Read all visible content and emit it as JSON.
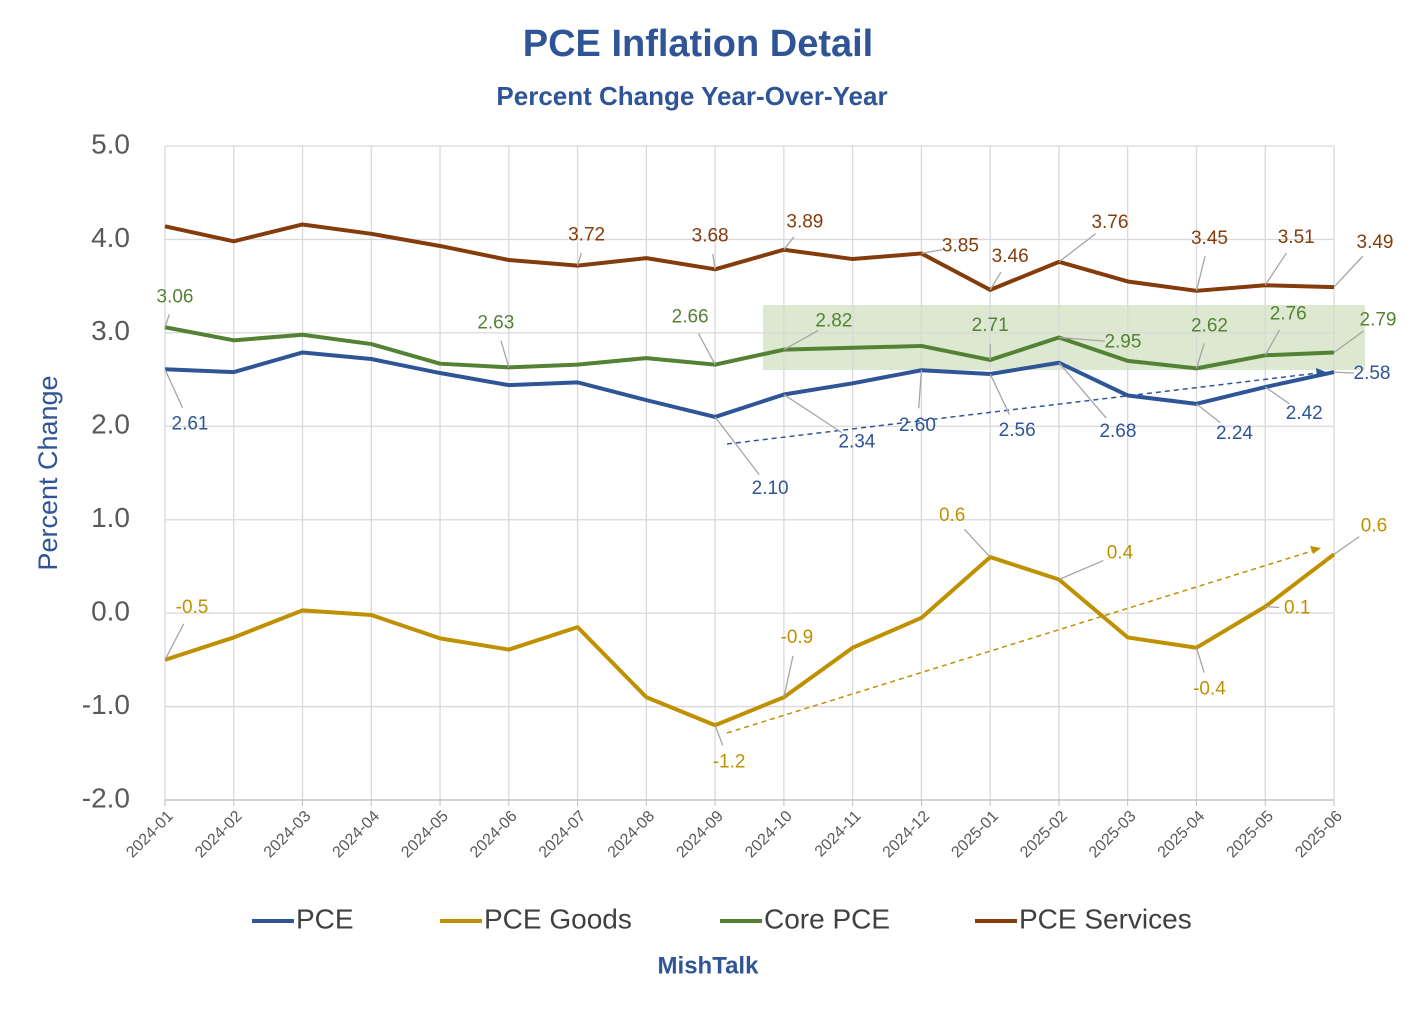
{
  "chart_data": {
    "type": "line",
    "title": "PCE Inflation Detail",
    "subtitle": "Percent Change Year-Over-Year",
    "y_label": "Percent Change",
    "footer": "MishTalk",
    "grid": true,
    "legend": "bottom",
    "categories": [
      "2024-01",
      "2024-02",
      "2024-03",
      "2024-04",
      "2024-05",
      "2024-06",
      "2024-07",
      "2024-08",
      "2024-09",
      "2024-10",
      "2024-11",
      "2024-12",
      "2025-01",
      "2025-02",
      "2025-03",
      "2025-04",
      "2025-05",
      "2025-06"
    ],
    "ylim": [
      -2,
      5
    ],
    "yticks": [
      {
        "value": -2,
        "label": "-2.0"
      },
      {
        "value": -1,
        "label": "-1.0"
      },
      {
        "value": 0,
        "label": "0.0"
      },
      {
        "value": 1,
        "label": "1.0"
      },
      {
        "value": 2,
        "label": "2.0"
      },
      {
        "value": 3,
        "label": "3.0"
      },
      {
        "value": 4,
        "label": "4.0"
      },
      {
        "value": 5,
        "label": "5.0"
      }
    ],
    "series": [
      {
        "name": "PCE",
        "color": "#2f5597",
        "values": [
          2.61,
          2.58,
          2.79,
          2.72,
          2.57,
          2.44,
          2.47,
          2.28,
          2.1,
          2.34,
          2.46,
          2.6,
          2.56,
          2.68,
          2.33,
          2.24,
          2.42,
          2.58
        ],
        "value_labels": [
          "2.61",
          null,
          null,
          null,
          null,
          null,
          null,
          null,
          "2.10",
          "2.34",
          null,
          "2.60",
          "2.56",
          "2.68",
          null,
          "2.24",
          "2.42",
          "2.58"
        ]
      },
      {
        "name": "PCE Goods",
        "color": "#bf9000",
        "values": [
          -0.5,
          -0.26,
          0.03,
          -0.02,
          -0.27,
          -0.39,
          -0.15,
          -0.9,
          -1.2,
          -0.9,
          -0.37,
          -0.05,
          0.6,
          0.36,
          -0.26,
          -0.37,
          0.07,
          0.63
        ],
        "value_labels": [
          "-0.5",
          null,
          null,
          null,
          null,
          null,
          null,
          null,
          "-1.2",
          "-0.9",
          null,
          null,
          "0.6",
          "0.4",
          null,
          "-0.4",
          "0.1",
          "0.6"
        ]
      },
      {
        "name": "Core PCE",
        "color": "#548235",
        "values": [
          3.06,
          2.92,
          2.98,
          2.88,
          2.67,
          2.63,
          2.66,
          2.73,
          2.66,
          2.82,
          2.84,
          2.86,
          2.71,
          2.95,
          2.7,
          2.62,
          2.76,
          2.79
        ],
        "value_labels": [
          "3.06",
          null,
          null,
          null,
          null,
          "2.63",
          null,
          null,
          "2.66",
          "2.82",
          null,
          null,
          "2.71",
          "2.95",
          null,
          "2.62",
          "2.76",
          "2.79"
        ]
      },
      {
        "name": "PCE Services",
        "color": "#843c0c",
        "values": [
          4.14,
          3.98,
          4.16,
          4.06,
          3.93,
          3.78,
          3.72,
          3.8,
          3.68,
          3.89,
          3.79,
          3.85,
          3.46,
          3.76,
          3.55,
          3.45,
          3.51,
          3.49
        ],
        "value_labels": [
          null,
          null,
          null,
          null,
          null,
          null,
          "3.72",
          null,
          "3.68",
          "3.89",
          null,
          "3.85",
          "3.46",
          "3.76",
          null,
          "3.45",
          "3.51",
          "3.49"
        ]
      }
    ]
  }
}
